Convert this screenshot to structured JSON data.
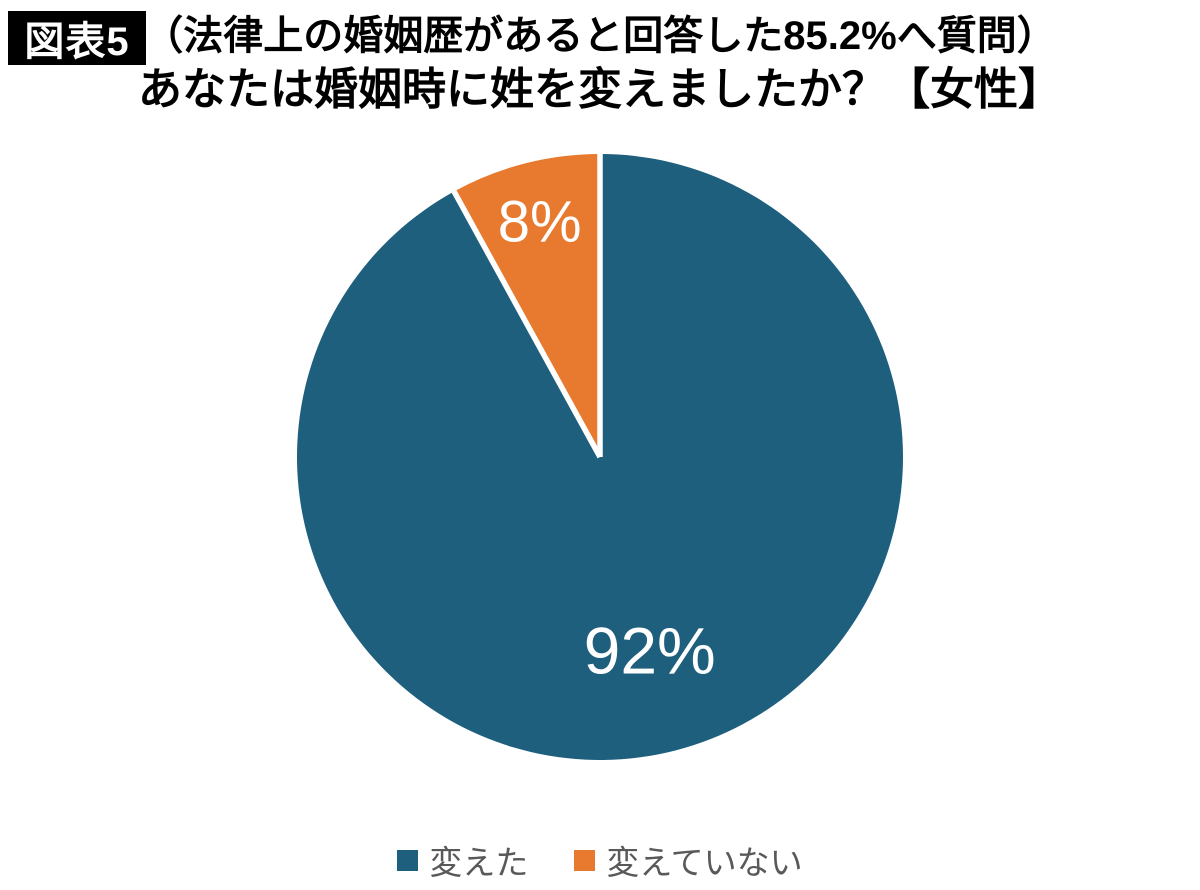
{
  "figure_label": "図表5",
  "chart_data": {
    "type": "pie",
    "title_line1": "（法律上の婚姻歴があると回答した85.2%へ質問）",
    "title_line2": "あなたは婚姻時に姓を変えましたか？【女性】",
    "slices": [
      {
        "label": "変えた",
        "value": 92,
        "data_label": "92%",
        "color": "#1E5F7D"
      },
      {
        "label": "変えていない",
        "value": 8,
        "data_label": "8%",
        "color": "#E87A2F"
      }
    ],
    "start_angle_deg": 0,
    "direction": "clockwise",
    "separator_color": "#FFFFFF",
    "data_label_color": "#FFFFFF",
    "legend_position": "bottom",
    "legend_text_color": "#595959",
    "background_color": "#FFFFFF",
    "badge_background": "#000000",
    "badge_text_color": "#FFFFFF"
  }
}
